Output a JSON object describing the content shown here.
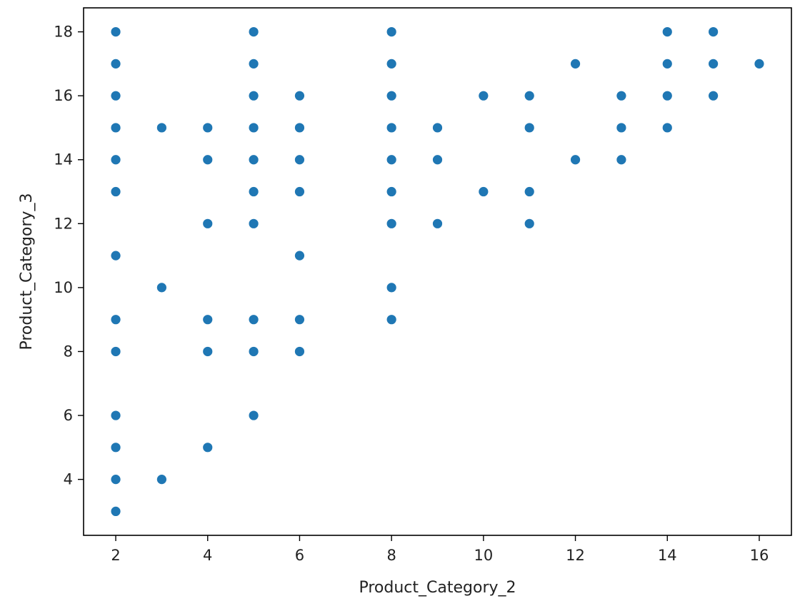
{
  "chart_data": {
    "type": "scatter",
    "title": "",
    "xlabel": "Product_Category_2",
    "ylabel": "Product_Category_3",
    "xlim": [
      1.3,
      16.7
    ],
    "ylim": [
      2.25,
      18.75
    ],
    "xticks": [
      2,
      4,
      6,
      8,
      10,
      12,
      14,
      16
    ],
    "yticks": [
      4,
      6,
      8,
      10,
      12,
      14,
      16,
      18
    ],
    "grid": false,
    "marker_color": "#1f77b4",
    "points": [
      [
        2,
        3
      ],
      [
        2,
        4
      ],
      [
        2,
        5
      ],
      [
        2,
        6
      ],
      [
        2,
        8
      ],
      [
        2,
        9
      ],
      [
        2,
        11
      ],
      [
        2,
        13
      ],
      [
        2,
        14
      ],
      [
        2,
        15
      ],
      [
        2,
        16
      ],
      [
        2,
        17
      ],
      [
        2,
        18
      ],
      [
        3,
        4
      ],
      [
        3,
        10
      ],
      [
        3,
        15
      ],
      [
        4,
        5
      ],
      [
        4,
        8
      ],
      [
        4,
        9
      ],
      [
        4,
        12
      ],
      [
        4,
        14
      ],
      [
        4,
        15
      ],
      [
        5,
        6
      ],
      [
        5,
        8
      ],
      [
        5,
        9
      ],
      [
        5,
        12
      ],
      [
        5,
        13
      ],
      [
        5,
        14
      ],
      [
        5,
        15
      ],
      [
        5,
        16
      ],
      [
        5,
        17
      ],
      [
        5,
        18
      ],
      [
        6,
        8
      ],
      [
        6,
        9
      ],
      [
        6,
        11
      ],
      [
        6,
        13
      ],
      [
        6,
        14
      ],
      [
        6,
        15
      ],
      [
        6,
        16
      ],
      [
        8,
        9
      ],
      [
        8,
        10
      ],
      [
        8,
        12
      ],
      [
        8,
        13
      ],
      [
        8,
        14
      ],
      [
        8,
        15
      ],
      [
        8,
        16
      ],
      [
        8,
        17
      ],
      [
        8,
        18
      ],
      [
        9,
        12
      ],
      [
        9,
        14
      ],
      [
        9,
        15
      ],
      [
        10,
        13
      ],
      [
        10,
        16
      ],
      [
        11,
        12
      ],
      [
        11,
        13
      ],
      [
        11,
        15
      ],
      [
        11,
        16
      ],
      [
        12,
        14
      ],
      [
        12,
        17
      ],
      [
        13,
        14
      ],
      [
        13,
        15
      ],
      [
        13,
        16
      ],
      [
        14,
        15
      ],
      [
        14,
        16
      ],
      [
        14,
        17
      ],
      [
        14,
        18
      ],
      [
        15,
        16
      ],
      [
        15,
        17
      ],
      [
        15,
        18
      ],
      [
        16,
        17
      ]
    ]
  }
}
